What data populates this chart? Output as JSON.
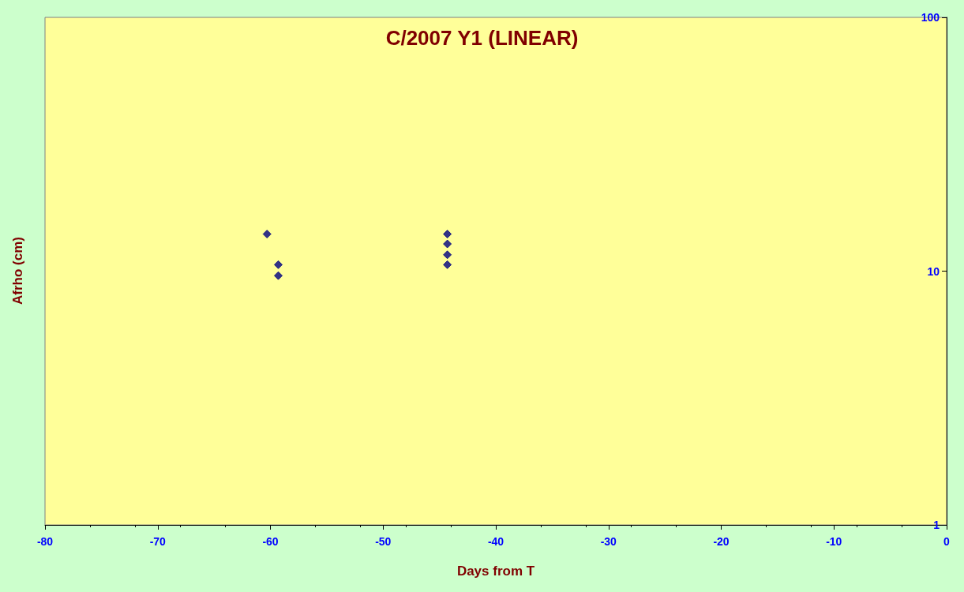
{
  "chart_data": {
    "type": "scatter",
    "title": "C/2007 Y1 (LINEAR)",
    "xlabel": "Days from T",
    "ylabel": "Afrho (cm)",
    "x": [
      -60.3,
      -59.3,
      -59.3,
      -44.3,
      -44.3,
      -44.3,
      -44.3
    ],
    "series": [
      {
        "color": "#000080",
        "values": [
          14.0,
          10.6,
          9.6,
          14.0,
          12.8,
          11.6,
          10.6
        ]
      }
    ],
    "xlim": [
      -80,
      0
    ],
    "xticks": [
      -80,
      -70,
      -60,
      -50,
      -40,
      -30,
      -20,
      -10,
      0
    ],
    "ylim": [
      1,
      100
    ],
    "yticks": [
      1,
      10,
      100
    ],
    "log": "y",
    "grid": false,
    "marker": "diamond"
  }
}
